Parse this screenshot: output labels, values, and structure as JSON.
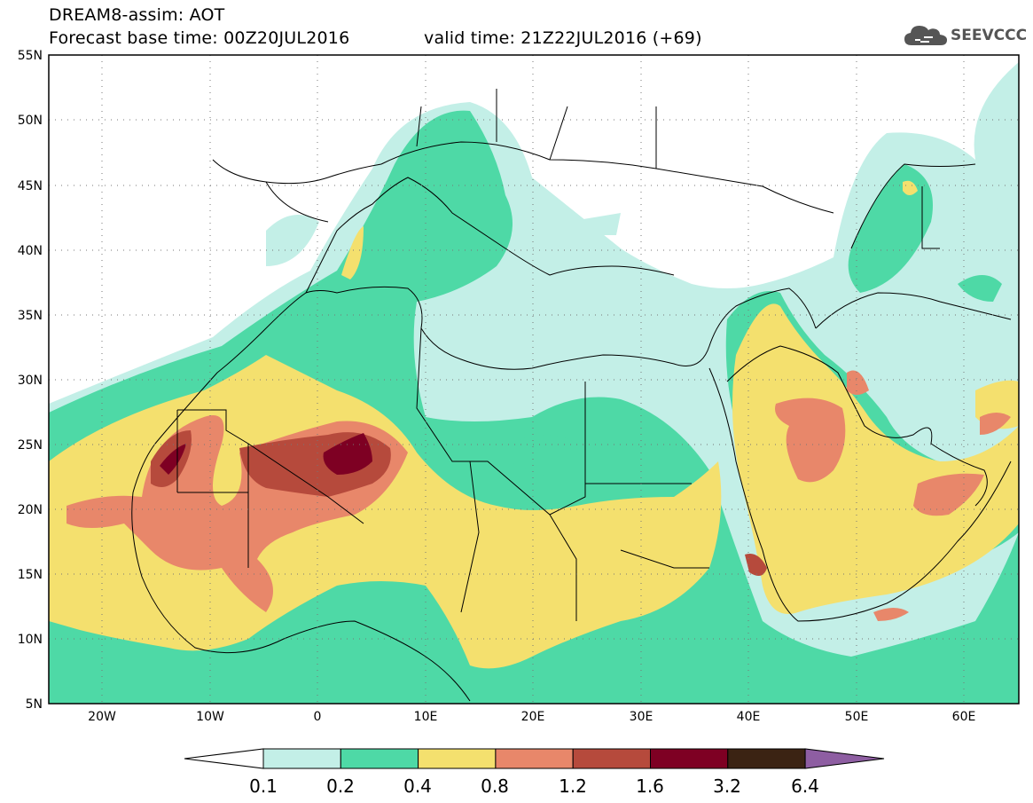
{
  "header": {
    "title": "DREAM8-assim: AOT",
    "base_time": "Forecast base time: 00Z20JUL2016",
    "valid_time": "valid time: 21Z22JUL2016 (+69)"
  },
  "logo": {
    "text": "SEEVCCC",
    "icon": "cloud-icon"
  },
  "map": {
    "lat_labels": [
      "55N",
      "50N",
      "45N",
      "40N",
      "35N",
      "30N",
      "25N",
      "20N",
      "15N",
      "10N",
      "5N"
    ],
    "lon_labels": [
      "20W",
      "10W",
      "0",
      "10E",
      "20E",
      "30E",
      "40E",
      "50E",
      "60E"
    ]
  },
  "colorbar": {
    "labels": [
      "0.1",
      "0.2",
      "0.4",
      "0.8",
      "1.2",
      "1.6",
      "3.2",
      "6.4"
    ],
    "colors": [
      "#ffffff",
      "#c3efe7",
      "#4ed9a6",
      "#f4e06e",
      "#e8876a",
      "#b64a3c",
      "#7e0023",
      "#3b2313",
      "#8e5ea2"
    ]
  }
}
